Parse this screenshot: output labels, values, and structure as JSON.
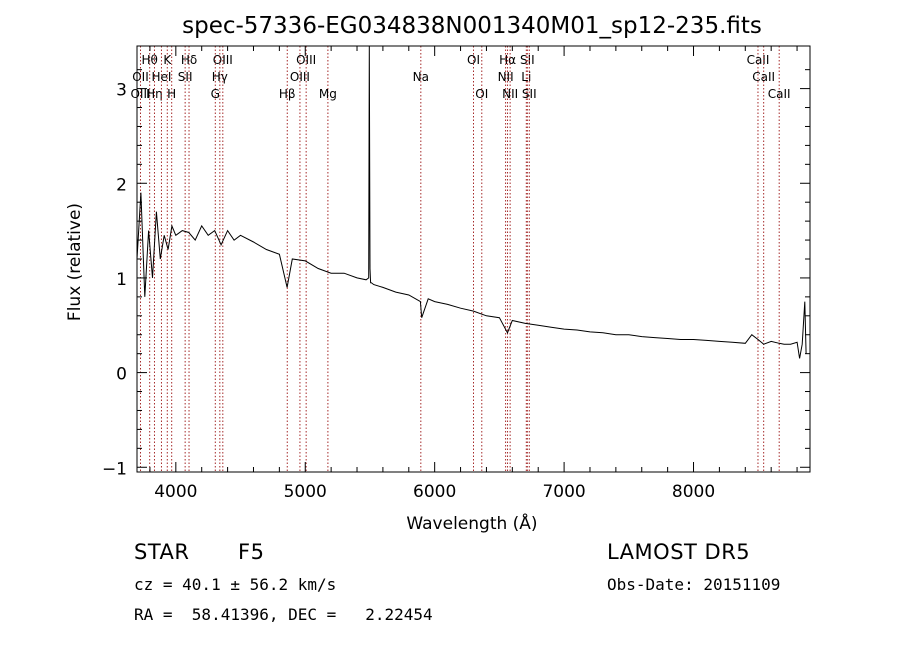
{
  "chart_data": {
    "type": "line",
    "title": "spec-57336-EG034838N001340M01_sp12-235.fits",
    "xlabel": "Wavelength (Å)",
    "ylabel": "Flux (relative)",
    "xlim": [
      3700,
      8900
    ],
    "ylim": [
      -1.05,
      3.45
    ],
    "xticks": [
      4000,
      5000,
      6000,
      7000,
      8000
    ],
    "yticks": [
      -1,
      0,
      1,
      2,
      3
    ],
    "tick_labels": {
      "x": [
        "4000",
        "5000",
        "6000",
        "7000",
        "8000"
      ],
      "y": [
        "−1",
        "0",
        "1",
        "2",
        "3"
      ]
    },
    "grid": false,
    "series": [
      {
        "color": "#000000",
        "x": [
          3700,
          3730,
          3760,
          3790,
          3820,
          3850,
          3880,
          3910,
          3940,
          3970,
          4000,
          4050,
          4100,
          4150,
          4200,
          4250,
          4300,
          4350,
          4400,
          4450,
          4500,
          4600,
          4700,
          4800,
          4860,
          4900,
          5000,
          5100,
          5200,
          5300,
          5400,
          5470,
          5490,
          5495,
          5500,
          5505,
          5510,
          5530,
          5600,
          5700,
          5800,
          5890,
          5900,
          5950,
          6000,
          6100,
          6200,
          6300,
          6400,
          6500,
          6563,
          6600,
          6700,
          6800,
          6900,
          7000,
          7100,
          7200,
          7300,
          7400,
          7500,
          7600,
          7700,
          7800,
          7900,
          8000,
          8100,
          8200,
          8300,
          8400,
          8450,
          8498,
          8542,
          8600,
          8662,
          8700,
          8750,
          8800,
          8820,
          8840,
          8860,
          8870
        ],
        "y": [
          1.2,
          1.9,
          0.8,
          1.5,
          1.0,
          1.7,
          1.2,
          1.45,
          1.3,
          1.55,
          1.45,
          1.5,
          1.48,
          1.4,
          1.55,
          1.45,
          1.5,
          1.35,
          1.5,
          1.4,
          1.45,
          1.38,
          1.3,
          1.25,
          0.9,
          1.2,
          1.18,
          1.1,
          1.05,
          1.05,
          1.0,
          0.98,
          1.0,
          3.45,
          1.1,
          0.95,
          0.95,
          0.93,
          0.9,
          0.85,
          0.82,
          0.75,
          0.58,
          0.78,
          0.75,
          0.72,
          0.68,
          0.65,
          0.6,
          0.58,
          0.42,
          0.55,
          0.52,
          0.5,
          0.48,
          0.46,
          0.45,
          0.43,
          0.42,
          0.4,
          0.4,
          0.38,
          0.37,
          0.36,
          0.35,
          0.35,
          0.34,
          0.33,
          0.32,
          0.31,
          0.4,
          0.35,
          0.3,
          0.33,
          0.31,
          0.3,
          0.3,
          0.32,
          0.15,
          0.3,
          0.75,
          0.2
        ]
      }
    ],
    "lines": [
      {
        "label": "Hθ",
        "x": 3798,
        "row": 0
      },
      {
        "label": "OII",
        "x": 3727,
        "row": 1
      },
      {
        "label": "OIII",
        "x": 3727,
        "row": 2
      },
      {
        "label": "Hη",
        "x": 3835,
        "row": 2
      },
      {
        "label": "K",
        "x": 3934,
        "row": 0
      },
      {
        "label": "HeI",
        "x": 3889,
        "row": 1
      },
      {
        "label": "H",
        "x": 3968,
        "row": 2
      },
      {
        "label": "Hδ",
        "x": 4102,
        "row": 0
      },
      {
        "label": "SII",
        "x": 4072,
        "row": 1
      },
      {
        "label": "OIII",
        "x": 4363,
        "row": 0
      },
      {
        "label": "Hγ",
        "x": 4340,
        "row": 1
      },
      {
        "label": "G",
        "x": 4305,
        "row": 2
      },
      {
        "label": "OIII",
        "x": 5007,
        "row": 0
      },
      {
        "label": "OIII",
        "x": 4959,
        "row": 1
      },
      {
        "label": "Hβ",
        "x": 4861,
        "row": 2
      },
      {
        "label": "Mg",
        "x": 5175,
        "row": 2
      },
      {
        "label": "Na",
        "x": 5893,
        "row": 1
      },
      {
        "label": "OI",
        "x": 6300,
        "row": 0
      },
      {
        "label": "OI",
        "x": 6364,
        "row": 2
      },
      {
        "label": "Hα",
        "x": 6563,
        "row": 0
      },
      {
        "label": "NII",
        "x": 6548,
        "row": 1
      },
      {
        "label": "NII",
        "x": 6583,
        "row": 2
      },
      {
        "label": "SII",
        "x": 6716,
        "row": 0
      },
      {
        "label": "Li",
        "x": 6708,
        "row": 1
      },
      {
        "label": "SII",
        "x": 6731,
        "row": 2
      },
      {
        "label": "CaII",
        "x": 8498,
        "row": 0
      },
      {
        "label": "CaII",
        "x": 8542,
        "row": 1
      },
      {
        "label": "CaII",
        "x": 8662,
        "row": 2
      }
    ]
  },
  "info": {
    "object_type": "STAR",
    "subclass": "F5",
    "survey": "LAMOST DR5",
    "cz": "cz = 40.1 ± 56.2 km/s",
    "obs_date": "Obs-Date: 20151109",
    "coords": "RA =  58.41396, DEC =   2.22454"
  }
}
